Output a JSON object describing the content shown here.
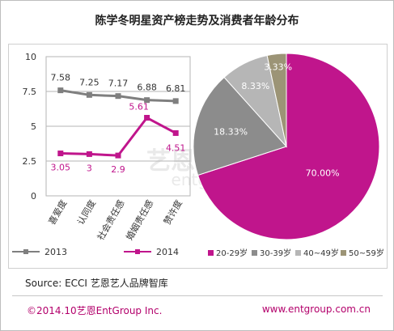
{
  "page": {
    "title": "陈学冬明星资产榜走势及消费者年龄分布",
    "source": "Source: ECCI 艺恩艺人品牌智库",
    "footer_left": "©2014.10艺恩EntGroup Inc.",
    "footer_right": "www.entgroup.com.cn",
    "watermark_cn": "艺恩咨询",
    "watermark_en": "entgroup"
  },
  "chart_data": [
    {
      "type": "line",
      "categories": [
        "喜爱度",
        "认同度",
        "社会责任感",
        "婚姻责任感",
        "赞许度"
      ],
      "ylim": [
        0,
        10
      ],
      "yticks": [
        0,
        2.5,
        5,
        7.5,
        10
      ],
      "ytick_labels": [
        "0",
        "2.5",
        "5",
        "7.5",
        "10"
      ],
      "grid": true,
      "legend_position": "bottom",
      "series": [
        {
          "name": "2013",
          "values": [
            7.58,
            7.25,
            7.17,
            6.88,
            6.81
          ],
          "labels": [
            "7.58",
            "7.25",
            "7.17",
            "6.88",
            "6.81"
          ],
          "color": "#7f7f7f"
        },
        {
          "name": "2014",
          "values": [
            3.05,
            3,
            2.9,
            5.61,
            4.51
          ],
          "labels": [
            "3.05",
            "3",
            "2.9",
            "5.61",
            "4.51"
          ],
          "color": "#c0158c"
        }
      ]
    },
    {
      "type": "pie",
      "legend_position": "bottom",
      "slices": [
        {
          "label": "20-29岁",
          "value": 70.0,
          "value_label": "70.00%",
          "color": "#c0158c"
        },
        {
          "label": "30-39岁",
          "value": 18.33,
          "value_label": "18.33%",
          "color": "#8c8c8c"
        },
        {
          "label": "40~49岁",
          "value": 8.33,
          "value_label": "8.33%",
          "color": "#b6b6b6"
        },
        {
          "label": "50~59岁",
          "value": 3.33,
          "value_label": "3.33%",
          "color": "#9c9476"
        }
      ]
    }
  ]
}
